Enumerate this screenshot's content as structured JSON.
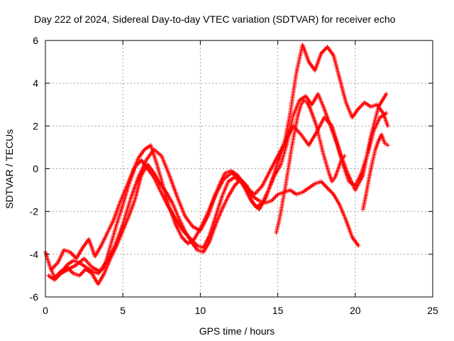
{
  "chart_data": {
    "type": "scatter",
    "title": "Day 222 of 2024, Sidereal Day-to-day VTEC variation (SDTVAR) for receiver echo",
    "xlabel": "GPS time / hours",
    "ylabel": "SDTVAR / TECUs",
    "xlim": [
      0,
      25
    ],
    "ylim": [
      -6,
      6
    ],
    "xticks": [
      "0",
      "5",
      "10",
      "15",
      "20",
      "25"
    ],
    "yticks": [
      "-6",
      "-4",
      "-2",
      "0",
      "2",
      "4",
      "6"
    ],
    "grid": true,
    "marker": "+",
    "series": [
      {
        "color": "#ff0000",
        "x": [
          0.0,
          0.3,
          0.6,
          1.0,
          1.4,
          1.8,
          2.2,
          2.6,
          3.0,
          3.4,
          3.8,
          4.2,
          4.6,
          5.0,
          5.4,
          5.8,
          6.2,
          6.6,
          7.0,
          7.4,
          7.8,
          8.2,
          8.6,
          9.0,
          9.4,
          9.8,
          10.2,
          10.6,
          11.0,
          11.4,
          11.8,
          12.2,
          12.6,
          13.0,
          13.4,
          13.8,
          14.2,
          14.6,
          15.0,
          15.4,
          15.8,
          16.2,
          16.6,
          17.0,
          17.4,
          17.8,
          18.2,
          18.6,
          19.0,
          19.4,
          19.8,
          20.2
        ],
        "y": [
          -3.9,
          -4.6,
          -5.1,
          -4.8,
          -4.6,
          -4.9,
          -5.0,
          -4.7,
          -4.9,
          -5.4,
          -4.9,
          -4.2,
          -3.6,
          -2.9,
          -2.2,
          -1.4,
          -0.3,
          0.2,
          -0.2,
          -0.7,
          -1.1,
          -1.6,
          -2.3,
          -2.9,
          -3.4,
          -3.8,
          -3.9,
          -3.4,
          -2.6,
          -1.9,
          -1.3,
          -0.8,
          -0.5,
          -0.8,
          -1.3,
          -1.5,
          -1.6,
          -1.5,
          -1.2,
          -1.1,
          -1.0,
          -1.2,
          -1.1,
          -0.9,
          -0.7,
          -0.6,
          -0.9,
          -1.2,
          -1.7,
          -2.4,
          -3.2,
          -3.6
        ]
      },
      {
        "color": "#ff0000",
        "x": [
          0.2,
          0.6,
          1.0,
          1.4,
          1.8,
          2.2,
          2.6,
          3.0,
          3.4,
          3.8,
          4.2,
          4.6,
          5.0,
          5.4,
          5.8,
          6.2,
          6.6,
          7.0,
          7.4,
          7.8,
          8.2,
          8.6,
          9.0,
          9.4,
          9.8,
          10.2,
          10.6,
          11.0,
          11.4,
          11.8,
          12.2,
          12.6,
          13.0,
          13.4,
          13.8,
          14.2,
          14.6,
          15.0,
          15.4,
          15.8,
          16.2,
          16.6,
          17.0,
          17.4,
          17.8,
          18.2,
          18.6,
          19.0,
          19.4,
          19.8,
          20.2,
          20.6,
          21.0,
          21.4,
          21.8,
          22.1
        ],
        "y": [
          -5.0,
          -5.2,
          -4.9,
          -4.5,
          -4.3,
          -4.4,
          -4.6,
          -4.8,
          -4.9,
          -4.6,
          -3.6,
          -2.6,
          -1.7,
          -0.7,
          0.1,
          0.4,
          0.0,
          -0.4,
          -1.0,
          -1.6,
          -2.1,
          -2.6,
          -3.0,
          -3.3,
          -3.6,
          -3.7,
          -3.1,
          -2.2,
          -1.3,
          -0.6,
          -0.4,
          -0.6,
          -1.0,
          -1.6,
          -1.9,
          -1.4,
          -0.6,
          0.3,
          1.1,
          2.6,
          4.5,
          5.8,
          5.0,
          4.6,
          5.4,
          5.7,
          5.3,
          4.2,
          3.1,
          2.4,
          2.8,
          3.1,
          2.9,
          3.0,
          2.6,
          2.0
        ]
      },
      {
        "color": "#ff0000",
        "x": [
          0.4,
          0.8,
          1.2,
          1.6,
          2.0,
          2.4,
          2.8,
          3.2,
          3.6,
          4.0,
          4.4,
          4.8,
          5.2,
          5.6,
          6.0,
          6.4,
          6.8,
          7.2,
          7.6,
          8.0,
          8.4,
          8.8,
          9.2,
          9.6,
          10.0,
          10.4,
          10.8,
          11.2,
          11.6,
          12.0,
          12.4,
          12.8,
          13.2,
          13.6,
          14.0,
          14.4,
          14.8,
          15.2,
          15.6,
          16.0,
          16.4,
          16.8,
          17.2,
          17.6,
          18.0,
          18.4,
          18.8,
          19.2,
          19.6,
          20.0,
          20.4,
          20.8,
          21.2,
          21.6,
          22.0
        ],
        "y": [
          -4.7,
          -4.4,
          -3.8,
          -3.9,
          -4.2,
          -3.7,
          -3.3,
          -4.1,
          -3.6,
          -3.0,
          -2.4,
          -1.6,
          -0.9,
          -0.2,
          0.5,
          0.9,
          1.1,
          0.2,
          -0.8,
          -1.8,
          -2.6,
          -3.2,
          -3.5,
          -3.3,
          -2.8,
          -2.2,
          -1.5,
          -0.8,
          -0.2,
          -0.1,
          -0.3,
          -0.8,
          -1.4,
          -1.8,
          -1.6,
          -1.0,
          -0.3,
          0.2,
          1.2,
          2.5,
          3.2,
          3.4,
          3.0,
          3.5,
          2.8,
          2.0,
          1.2,
          0.2,
          -0.6,
          -0.8,
          -0.2,
          0.7,
          1.8,
          2.4,
          2.6
        ]
      },
      {
        "color": "#ff0000",
        "x": [
          1.0,
          1.5,
          2.0,
          2.5,
          3.0,
          3.5,
          4.0,
          4.5,
          5.0,
          5.5,
          6.0,
          6.5,
          7.0,
          7.5,
          8.0,
          8.5,
          9.0,
          9.5,
          10.0,
          10.5,
          11.0,
          11.5,
          12.0,
          12.5,
          13.0,
          13.5,
          14.0,
          14.5,
          15.0,
          15.5,
          16.0,
          16.5,
          17.0,
          17.5,
          18.0,
          18.5,
          19.0,
          19.5,
          20.0,
          20.5,
          21.0,
          21.5,
          22.0
        ],
        "y": [
          -4.9,
          -4.7,
          -4.5,
          -4.2,
          -4.6,
          -4.8,
          -4.3,
          -3.6,
          -2.6,
          -1.4,
          -0.4,
          0.4,
          0.9,
          0.6,
          -0.3,
          -1.3,
          -2.2,
          -2.7,
          -2.9,
          -2.2,
          -1.2,
          -0.5,
          -0.2,
          -0.4,
          -0.9,
          -1.2,
          -0.8,
          -0.1,
          0.6,
          1.3,
          2.0,
          1.6,
          1.1,
          1.7,
          2.4,
          2.0,
          0.8,
          -0.2,
          -1.0,
          -0.3,
          1.5,
          2.9,
          3.5
        ]
      },
      {
        "color": "#ff0000",
        "x": [
          14.9,
          15.1,
          15.3,
          15.5,
          15.7,
          15.9,
          16.1,
          16.3,
          16.5,
          16.7,
          16.9,
          17.1,
          17.3,
          17.5,
          17.7,
          17.9,
          18.1,
          18.3,
          18.5,
          18.7,
          18.9,
          19.1,
          19.3
        ],
        "y": [
          -3.0,
          -2.4,
          -1.6,
          -0.8,
          0.1,
          1.0,
          1.8,
          2.5,
          3.0,
          3.2,
          3.1,
          2.8,
          2.4,
          2.0,
          1.4,
          0.8,
          0.3,
          -0.2,
          -0.6,
          -0.4,
          0.0,
          0.4,
          0.6
        ]
      },
      {
        "color": "#ff0000",
        "x": [
          20.5,
          20.7,
          20.9,
          21.1,
          21.3,
          21.5,
          21.7,
          21.9,
          22.1
        ],
        "y": [
          -1.9,
          -1.2,
          -0.4,
          0.3,
          0.9,
          1.3,
          1.6,
          1.2,
          1.1
        ]
      }
    ]
  }
}
